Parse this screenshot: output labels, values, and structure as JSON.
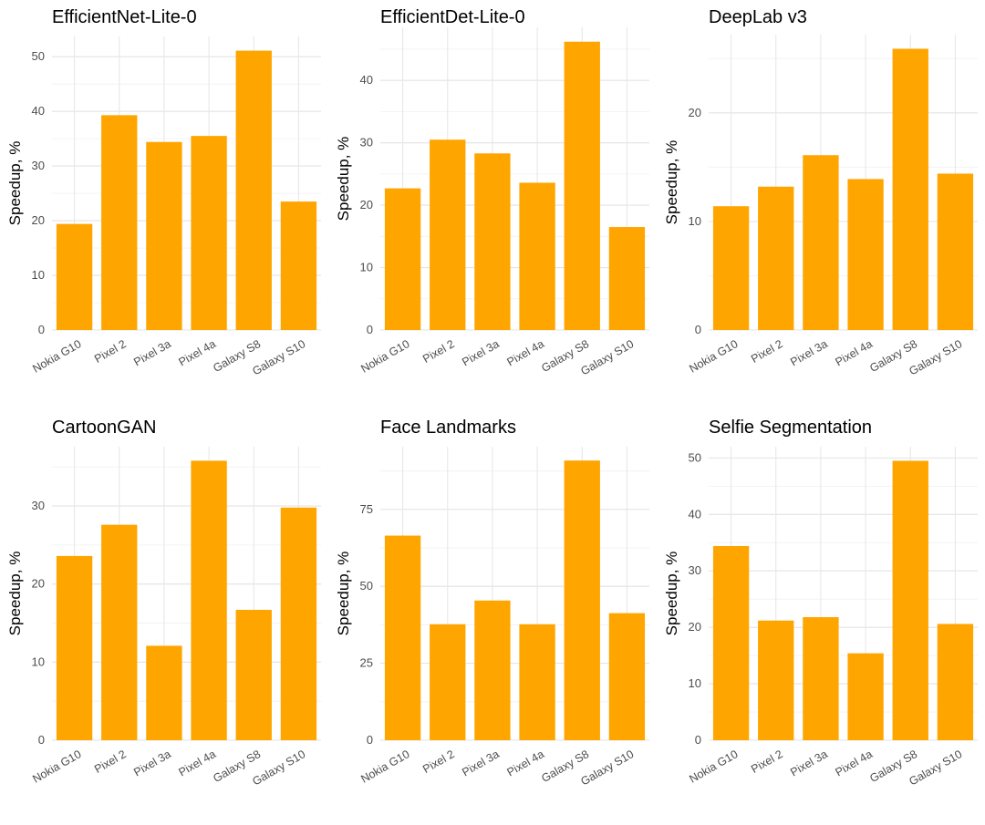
{
  "chart_data": [
    {
      "type": "bar",
      "title": "EfficientNet-Lite-0",
      "ylabel": "Speedup, %",
      "xlabel": "",
      "categories": [
        "Nokia G10",
        "Pixel 2",
        "Pixel 3a",
        "Pixel 4a",
        "Galaxy S8",
        "Galaxy S10"
      ],
      "values": [
        19.4,
        39.3,
        34.4,
        35.5,
        51.1,
        23.5
      ],
      "ylim": [
        0,
        53.7
      ],
      "yticks": [
        0,
        10,
        20,
        30,
        40,
        50
      ],
      "minor_step": 5,
      "color": "#FFA500"
    },
    {
      "type": "bar",
      "title": "EfficientDet-Lite-0",
      "ylabel": "Speedup, %",
      "xlabel": "",
      "categories": [
        "Nokia G10",
        "Pixel 2",
        "Pixel 3a",
        "Pixel 4a",
        "Galaxy S8",
        "Galaxy S10"
      ],
      "values": [
        22.7,
        30.5,
        28.3,
        23.6,
        46.2,
        16.5
      ],
      "ylim": [
        0,
        48.5
      ],
      "yticks": [
        0,
        10,
        20,
        30,
        40
      ],
      "minor_step": 5,
      "color": "#FFA500"
    },
    {
      "type": "bar",
      "title": "DeepLab v3",
      "ylabel": "Speedup, %",
      "xlabel": "",
      "categories": [
        "Nokia G10",
        "Pixel 2",
        "Pixel 3a",
        "Pixel 4a",
        "Galaxy S8",
        "Galaxy S10"
      ],
      "values": [
        11.4,
        13.2,
        16.1,
        13.9,
        25.9,
        14.4
      ],
      "ylim": [
        0,
        27.2
      ],
      "yticks": [
        0,
        10,
        20
      ],
      "minor_step": 5,
      "color": "#FFA500"
    },
    {
      "type": "bar",
      "title": "CartoonGAN",
      "ylabel": "Speedup, %",
      "xlabel": "",
      "categories": [
        "Nokia G10",
        "Pixel 2",
        "Pixel 3a",
        "Pixel 4a",
        "Galaxy S8",
        "Galaxy S10"
      ],
      "values": [
        23.6,
        27.6,
        12.1,
        35.8,
        16.7,
        29.8
      ],
      "ylim": [
        0,
        37.6
      ],
      "yticks": [
        0,
        10,
        20,
        30
      ],
      "minor_step": 5,
      "color": "#FFA500"
    },
    {
      "type": "bar",
      "title": "Face Landmarks",
      "ylabel": "Speedup, %",
      "xlabel": "",
      "categories": [
        "Nokia G10",
        "Pixel 2",
        "Pixel 3a",
        "Pixel 4a",
        "Galaxy S8",
        "Galaxy S10"
      ],
      "values": [
        66.5,
        37.7,
        45.4,
        37.7,
        90.9,
        41.3
      ],
      "ylim": [
        0,
        95.4
      ],
      "yticks": [
        0,
        25,
        50,
        75
      ],
      "minor_step": 12.5,
      "color": "#FFA500"
    },
    {
      "type": "bar",
      "title": "Selfie Segmentation",
      "ylabel": "Speedup, %",
      "xlabel": "",
      "categories": [
        "Nokia G10",
        "Pixel 2",
        "Pixel 3a",
        "Pixel 4a",
        "Galaxy S8",
        "Galaxy S10"
      ],
      "values": [
        34.4,
        21.2,
        21.8,
        15.4,
        49.5,
        20.6
      ],
      "ylim": [
        0,
        52
      ],
      "yticks": [
        0,
        10,
        20,
        30,
        40,
        50
      ],
      "minor_step": 5,
      "color": "#FFA500"
    }
  ]
}
